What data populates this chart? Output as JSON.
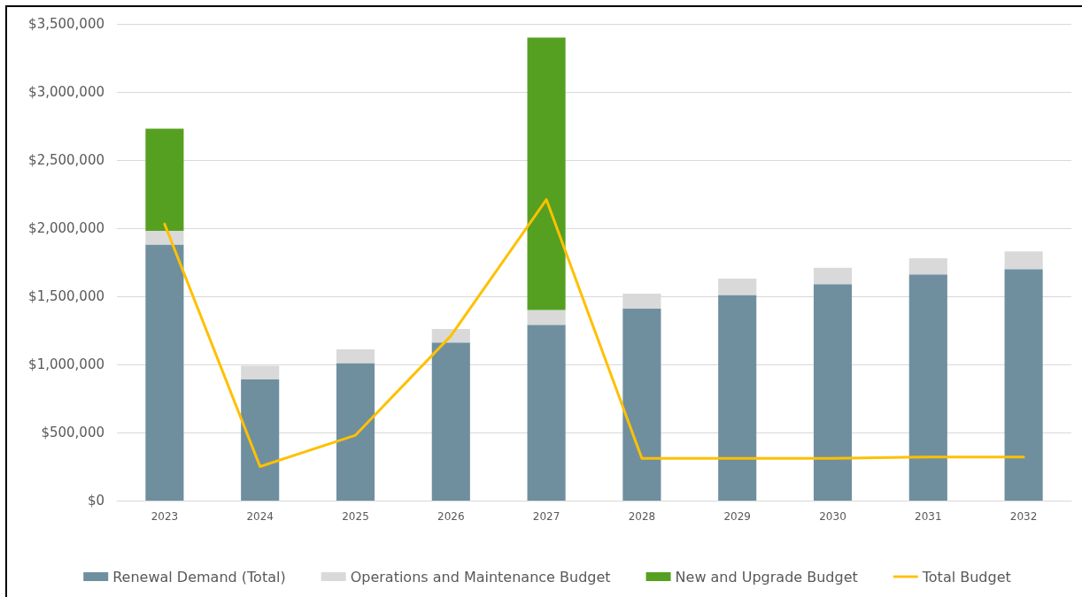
{
  "chart_data": {
    "type": "bar",
    "stacked": true,
    "categories": [
      "2023",
      "2024",
      "2025",
      "2026",
      "2027",
      "2028",
      "2029",
      "2030",
      "2031",
      "2032"
    ],
    "series": [
      {
        "name": "Renewal Demand (Total)",
        "color": "#6f8f9f",
        "values": [
          1880000,
          890000,
          1010000,
          1160000,
          1290000,
          1410000,
          1510000,
          1590000,
          1660000,
          1700000
        ]
      },
      {
        "name": "Operations and Maintenance Budget",
        "color": "#d9d9d9",
        "values": [
          100000,
          100000,
          100000,
          100000,
          110000,
          110000,
          120000,
          120000,
          120000,
          130000
        ]
      },
      {
        "name": "New and Upgrade Budget",
        "color": "#55a021",
        "values": [
          750000,
          null,
          null,
          null,
          2000000,
          null,
          null,
          null,
          null,
          null
        ]
      },
      {
        "name": "Total Budget",
        "type": "line",
        "color": "#ffc000",
        "marker": "none",
        "values": [
          2030000,
          250000,
          480000,
          1210000,
          2210000,
          310000,
          310000,
          310000,
          320000,
          320000
        ]
      }
    ],
    "ylim": [
      0,
      3500000
    ],
    "yticks": [
      {
        "value": 0,
        "label": "$0"
      },
      {
        "value": 500000,
        "label": "$500,000"
      },
      {
        "value": 1000000,
        "label": "$1,000,000"
      },
      {
        "value": 1500000,
        "label": "$1,500,000"
      },
      {
        "value": 2000000,
        "label": "$2,000,000"
      },
      {
        "value": 2500000,
        "label": "$2,500,000"
      },
      {
        "value": 3000000,
        "label": "$3,000,000"
      },
      {
        "value": 3500000,
        "label": "$3,500,000"
      }
    ],
    "grid": "y",
    "legend": "bottom"
  }
}
